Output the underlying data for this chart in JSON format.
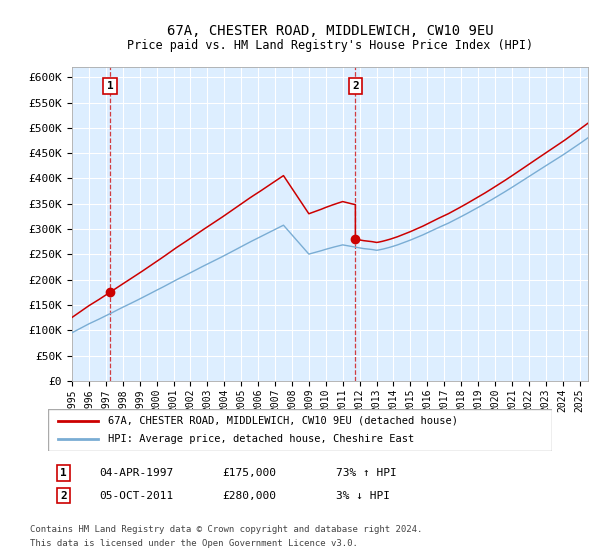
{
  "title": "67A, CHESTER ROAD, MIDDLEWICH, CW10 9EU",
  "subtitle": "Price paid vs. HM Land Registry's House Price Index (HPI)",
  "legend_line1": "67A, CHESTER ROAD, MIDDLEWICH, CW10 9EU (detached house)",
  "legend_line2": "HPI: Average price, detached house, Cheshire East",
  "annotation1_date": "04-APR-1997",
  "annotation1_price": "£175,000",
  "annotation1_hpi": "73% ↑ HPI",
  "annotation2_date": "05-OCT-2011",
  "annotation2_price": "£280,000",
  "annotation2_hpi": "3% ↓ HPI",
  "purchase1_year": 1997.25,
  "purchase1_price": 175000,
  "purchase2_year": 2011.75,
  "purchase2_price": 280000,
  "red_line_color": "#cc0000",
  "blue_line_color": "#7aadd4",
  "bg_color": "#ddeeff",
  "grid_color": "#ffffff",
  "footer": "Contains HM Land Registry data © Crown copyright and database right 2024.\nThis data is licensed under the Open Government Licence v3.0.",
  "ylim": [
    0,
    620000
  ],
  "yticks": [
    0,
    50000,
    100000,
    150000,
    200000,
    250000,
    300000,
    350000,
    400000,
    450000,
    500000,
    550000,
    600000
  ],
  "xlim": [
    1995,
    2025.5
  ]
}
